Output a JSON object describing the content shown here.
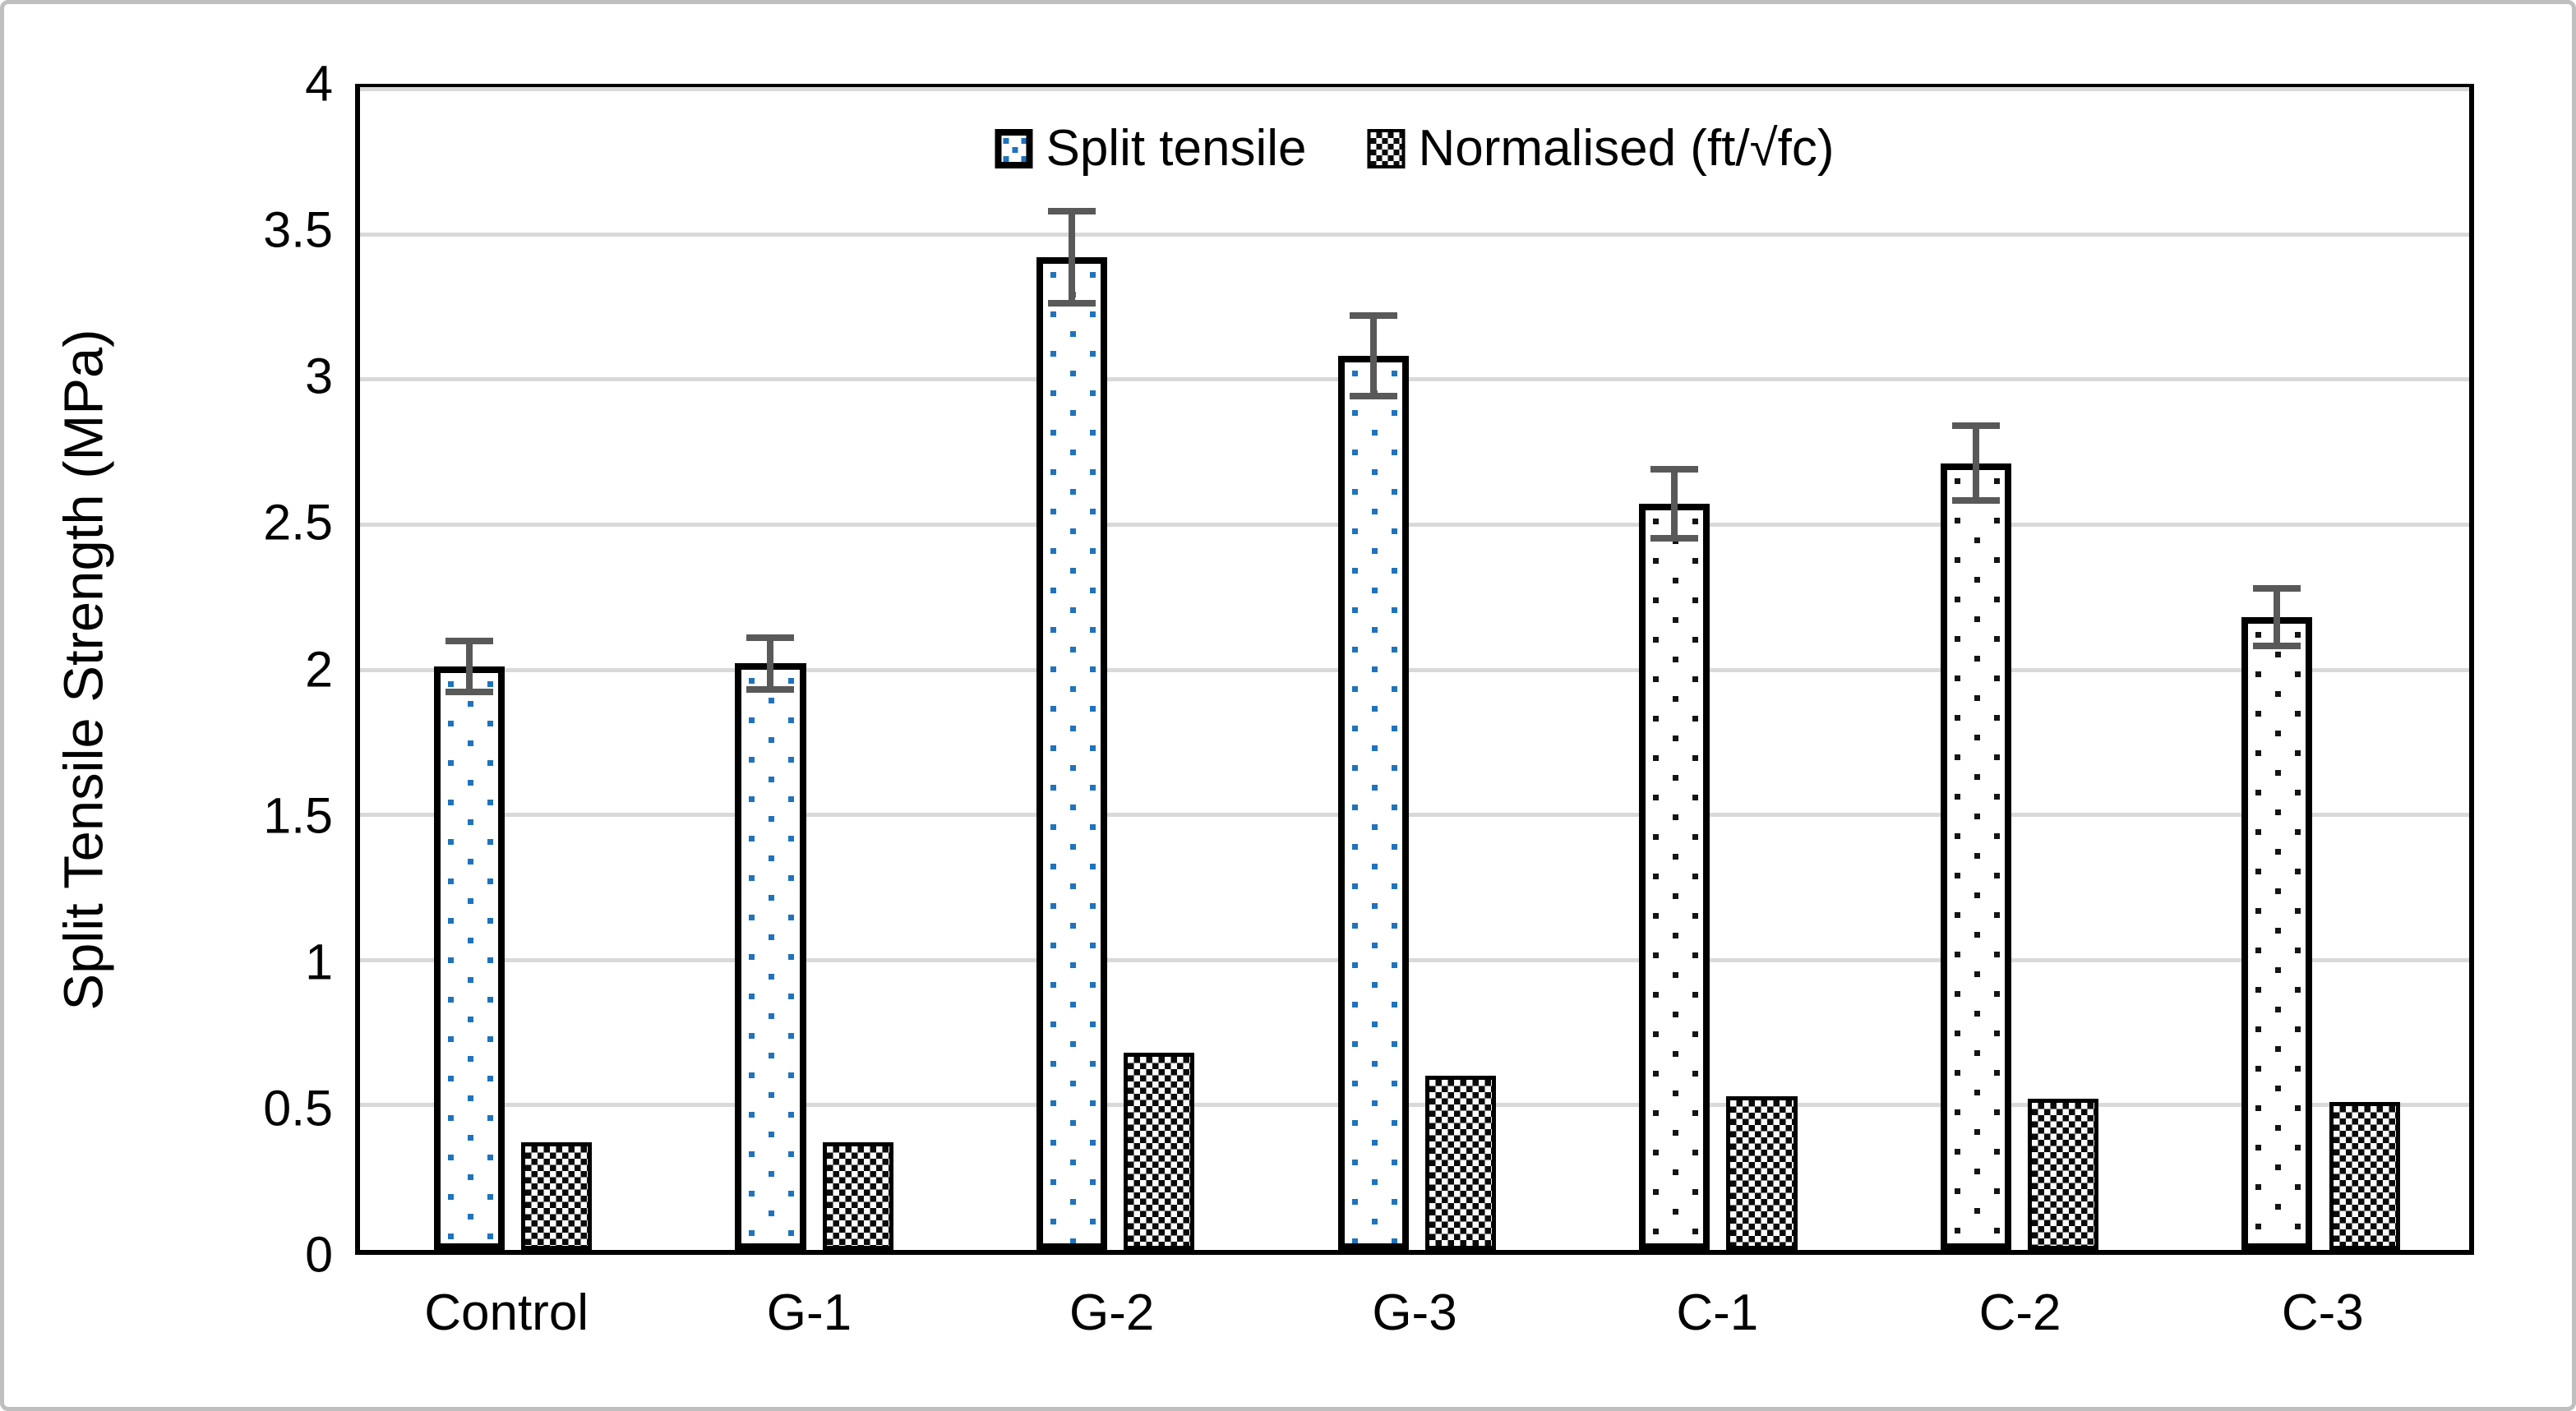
{
  "figure": {
    "background": "#ffffff",
    "border_color": "#bfbfbf"
  },
  "chart_data": {
    "type": "bar",
    "title": "",
    "xlabel": "",
    "ylabel": "Split Tensile Strength (MPa)",
    "ylim": [
      0,
      4
    ],
    "ytick_step": 0.5,
    "yticks": [
      "0",
      "0.5",
      "1",
      "1.5",
      "2",
      "2.5",
      "3",
      "3.5",
      "4"
    ],
    "grid": "horizontal gridlines every 0.5",
    "legend_position": "top-center inside plot",
    "categories": [
      "Control",
      "G-1",
      "G-2",
      "G-3",
      "C-1",
      "C-2",
      "C-3"
    ],
    "series": [
      {
        "name": "Split tensile",
        "pattern": "dotted-square fill, white background, black border",
        "values": [
          2.01,
          2.02,
          3.42,
          3.08,
          2.57,
          2.71,
          2.18
        ],
        "error_bars": [
          0.1,
          0.1,
          0.17,
          0.15,
          0.13,
          0.14,
          0.11
        ],
        "dot_colors": [
          "#1f73bd",
          "#1f73bd",
          "#1f73bd",
          "#1f73bd",
          "#141414",
          "#141414",
          "#141414"
        ]
      },
      {
        "name": "Normalised (ft/√fc)",
        "pattern": "black-white small checkerboard fill, black border",
        "values": [
          0.37,
          0.37,
          0.68,
          0.6,
          0.53,
          0.52,
          0.51
        ],
        "error_bars": null,
        "dot_colors": null
      }
    ],
    "colors": {
      "dot_blue": "#1f73bd",
      "dot_black": "#141414",
      "error_bar": "#595959",
      "gridline": "#d9d9d9",
      "axis": "#000000",
      "text": "#000000"
    }
  }
}
